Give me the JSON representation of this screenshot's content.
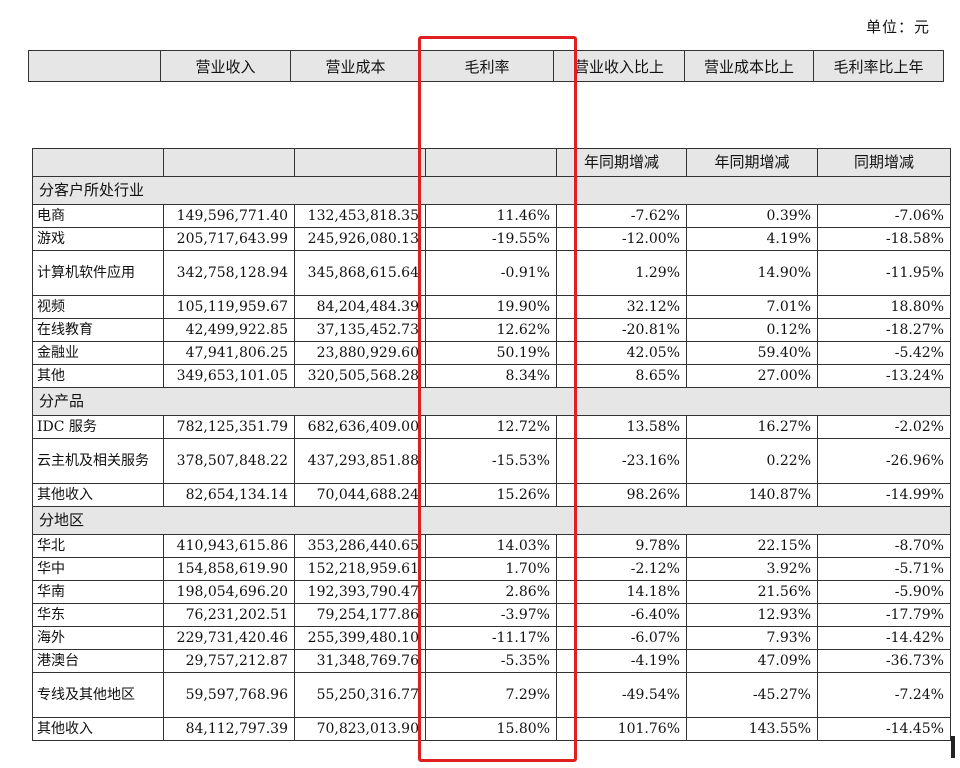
{
  "unit_label": "单位：元",
  "header_top": [
    "",
    "营业收入",
    "营业成本",
    "毛利率",
    "营业收入比上",
    "营业成本比上",
    "毛利率比上年"
  ],
  "header_second": [
    "",
    "",
    "",
    "",
    "年同期增减",
    "年同期增减",
    "同期增减"
  ],
  "sections": [
    {
      "title": "分客户所处行业",
      "rows": [
        {
          "name": "电商",
          "revenue": "149,596,771.40",
          "cost": "132,453,818.35",
          "margin": "11.46%",
          "rev_yoy": "-7.62%",
          "cost_yoy": "0.39%",
          "margin_yoy": "-7.06%"
        },
        {
          "name": "游戏",
          "revenue": "205,717,643.99",
          "cost": "245,926,080.13",
          "margin": "-19.55%",
          "rev_yoy": "-12.00%",
          "cost_yoy": "4.19%",
          "margin_yoy": "-18.58%"
        },
        {
          "name": "计算机软件应用",
          "revenue": "342,758,128.94",
          "cost": "345,868,615.64",
          "margin": "-0.91%",
          "rev_yoy": "1.29%",
          "cost_yoy": "14.90%",
          "margin_yoy": "-11.95%"
        },
        {
          "name": "视频",
          "revenue": "105,119,959.67",
          "cost": "84,204,484.39",
          "margin": "19.90%",
          "rev_yoy": "32.12%",
          "cost_yoy": "7.01%",
          "margin_yoy": "18.80%"
        },
        {
          "name": "在线教育",
          "revenue": "42,499,922.85",
          "cost": "37,135,452.73",
          "margin": "12.62%",
          "rev_yoy": "-20.81%",
          "cost_yoy": "0.12%",
          "margin_yoy": "-18.27%"
        },
        {
          "name": "金融业",
          "revenue": "47,941,806.25",
          "cost": "23,880,929.60",
          "margin": "50.19%",
          "rev_yoy": "42.05%",
          "cost_yoy": "59.40%",
          "margin_yoy": "-5.42%"
        },
        {
          "name": "其他",
          "revenue": "349,653,101.05",
          "cost": "320,505,568.28",
          "margin": "8.34%",
          "rev_yoy": "8.65%",
          "cost_yoy": "27.00%",
          "margin_yoy": "-13.24%"
        }
      ]
    },
    {
      "title": "分产品",
      "rows": [
        {
          "name": "IDC 服务",
          "revenue": "782,125,351.79",
          "cost": "682,636,409.00",
          "margin": "12.72%",
          "rev_yoy": "13.58%",
          "cost_yoy": "16.27%",
          "margin_yoy": "-2.02%"
        },
        {
          "name": "云主机及相关服务",
          "revenue": "378,507,848.22",
          "cost": "437,293,851.88",
          "margin": "-15.53%",
          "rev_yoy": "-23.16%",
          "cost_yoy": "0.22%",
          "margin_yoy": "-26.96%"
        },
        {
          "name": "其他收入",
          "revenue": "82,654,134.14",
          "cost": "70,044,688.24",
          "margin": "15.26%",
          "rev_yoy": "98.26%",
          "cost_yoy": "140.87%",
          "margin_yoy": "-14.99%"
        }
      ]
    },
    {
      "title": "分地区",
      "rows": [
        {
          "name": "华北",
          "revenue": "410,943,615.86",
          "cost": "353,286,440.65",
          "margin": "14.03%",
          "rev_yoy": "9.78%",
          "cost_yoy": "22.15%",
          "margin_yoy": "-8.70%"
        },
        {
          "name": "华中",
          "revenue": "154,858,619.90",
          "cost": "152,218,959.61",
          "margin": "1.70%",
          "rev_yoy": "-2.12%",
          "cost_yoy": "3.92%",
          "margin_yoy": "-5.71%"
        },
        {
          "name": "华南",
          "revenue": "198,054,696.20",
          "cost": "192,393,790.47",
          "margin": "2.86%",
          "rev_yoy": "14.18%",
          "cost_yoy": "21.56%",
          "margin_yoy": "-5.90%"
        },
        {
          "name": "华东",
          "revenue": "76,231,202.51",
          "cost": "79,254,177.86",
          "margin": "-3.97%",
          "rev_yoy": "-6.40%",
          "cost_yoy": "12.93%",
          "margin_yoy": "-17.79%"
        },
        {
          "name": "海外",
          "revenue": "229,731,420.46",
          "cost": "255,399,480.10",
          "margin": "-11.17%",
          "rev_yoy": "-6.07%",
          "cost_yoy": "7.93%",
          "margin_yoy": "-14.42%"
        },
        {
          "name": "港澳台",
          "revenue": "29,757,212.87",
          "cost": "31,348,769.76",
          "margin": "-5.35%",
          "rev_yoy": "-4.19%",
          "cost_yoy": "47.09%",
          "margin_yoy": "-36.73%"
        },
        {
          "name": "专线及其他地区",
          "revenue": "59,597,768.96",
          "cost": "55,250,316.77",
          "margin": "7.29%",
          "rev_yoy": "-49.54%",
          "cost_yoy": "-45.27%",
          "margin_yoy": "-7.24%"
        },
        {
          "name": "其他收入",
          "revenue": "84,112,797.39",
          "cost": "70,823,013.90",
          "margin": "15.80%",
          "rev_yoy": "101.76%",
          "cost_yoy": "143.55%",
          "margin_yoy": "-14.45%"
        }
      ]
    }
  ],
  "highlight_color": "#e02020"
}
